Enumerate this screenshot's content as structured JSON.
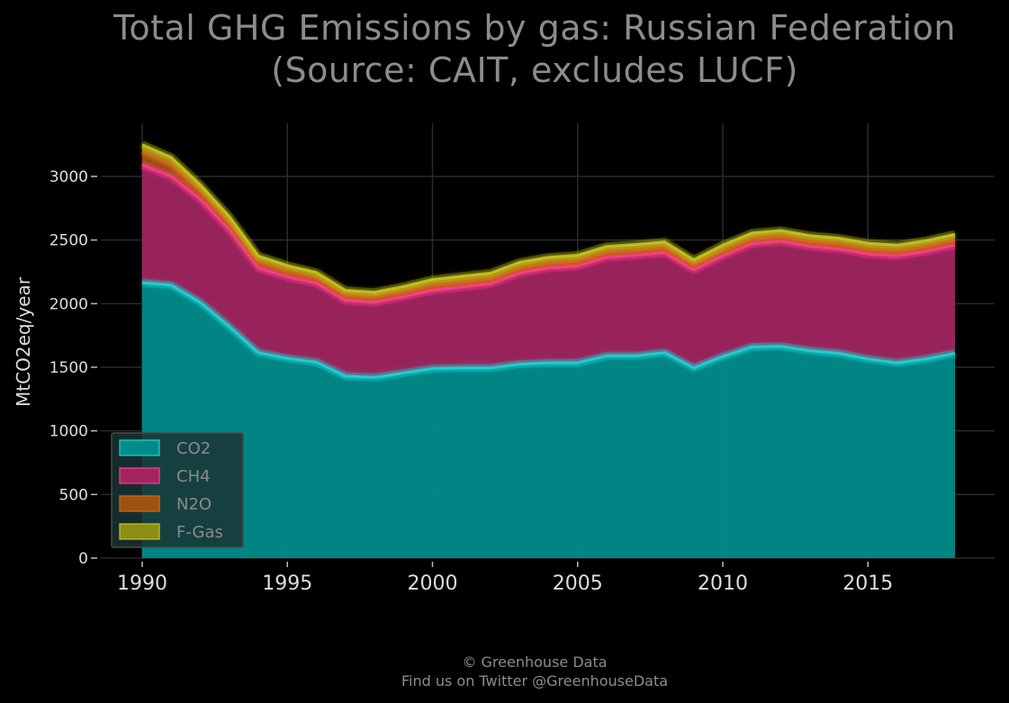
{
  "chart_data": {
    "type": "area",
    "stacked": true,
    "title_line1": "Total GHG Emissions by gas: Russian Federation",
    "title_line2": "(Source: CAIT, excludes LUCF)",
    "xlabel": "",
    "ylabel": "MtCO2eq/year",
    "xlim": [
      1990,
      2018
    ],
    "ylim": [
      0,
      3400
    ],
    "x_ticks": [
      1990,
      1995,
      2000,
      2005,
      2010,
      2015
    ],
    "y_ticks": [
      0,
      500,
      1000,
      1500,
      2000,
      2500,
      3000
    ],
    "grid": true,
    "legend_position": "lower-left",
    "x": [
      1990,
      1991,
      1992,
      1993,
      1994,
      1995,
      1996,
      1997,
      1998,
      1999,
      2000,
      2001,
      2002,
      2003,
      2004,
      2005,
      2006,
      2007,
      2008,
      2009,
      2010,
      2011,
      2012,
      2013,
      2014,
      2015,
      2016,
      2017,
      2018
    ],
    "series": [
      {
        "name": "CO2",
        "color": "#1fd6d6",
        "fill": "#008b8b",
        "values": [
          2165,
          2145,
          2010,
          1820,
          1615,
          1570,
          1540,
          1430,
          1420,
          1455,
          1490,
          1495,
          1495,
          1525,
          1535,
          1535,
          1590,
          1590,
          1615,
          1495,
          1585,
          1660,
          1665,
          1630,
          1610,
          1565,
          1535,
          1565,
          1610
        ]
      },
      {
        "name": "CH4",
        "color": "#ff3d8c",
        "fill": "#a0255f",
        "values": [
          925,
          855,
          810,
          760,
          665,
          640,
          620,
          595,
          590,
          600,
          615,
          635,
          660,
          715,
          745,
          760,
          775,
          790,
          785,
          770,
          790,
          810,
          825,
          820,
          820,
          825,
          840,
          845,
          850
        ]
      },
      {
        "name": "N2O",
        "color": "#d86a1a",
        "fill": "#9c5213",
        "values": [
          105,
          90,
          65,
          55,
          50,
          45,
          45,
          40,
          40,
          40,
          40,
          40,
          40,
          40,
          40,
          40,
          40,
          40,
          40,
          40,
          40,
          40,
          40,
          40,
          40,
          40,
          40,
          40,
          40
        ]
      },
      {
        "name": "F-Gas",
        "color": "#c8c81e",
        "fill": "#8c8c18",
        "values": [
          55,
          60,
          50,
          50,
          45,
          45,
          40,
          40,
          40,
          40,
          45,
          45,
          45,
          45,
          45,
          45,
          45,
          45,
          45,
          40,
          45,
          45,
          45,
          45,
          45,
          45,
          45,
          45,
          45
        ]
      }
    ]
  },
  "credits": {
    "line1": "© Greenhouse Data",
    "line2": "Find us on Twitter @GreenhouseData"
  }
}
